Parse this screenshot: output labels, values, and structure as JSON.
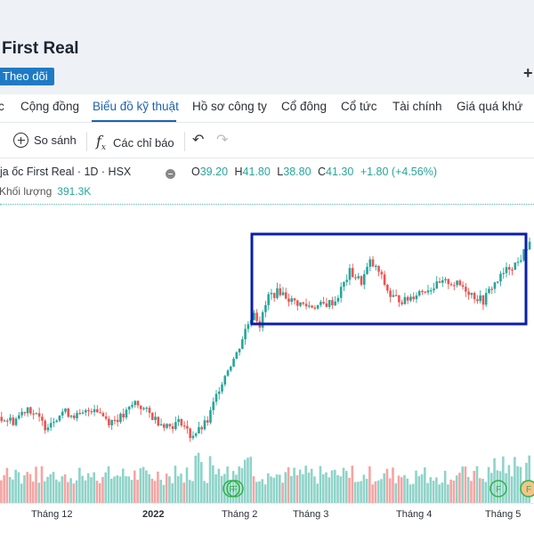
{
  "header": {
    "company_name": "First Real",
    "follow_label": "Theo dõi",
    "add_icon": "plus-icon"
  },
  "tabs": [
    {
      "label": "c",
      "active": false
    },
    {
      "label": "Cộng đồng",
      "active": false
    },
    {
      "label": "Biểu đồ kỹ thuật",
      "active": true
    },
    {
      "label": "Hồ sơ công ty",
      "active": false
    },
    {
      "label": "Cổ đông",
      "active": false
    },
    {
      "label": "Cổ tức",
      "active": false
    },
    {
      "label": "Tài chính",
      "active": false
    },
    {
      "label": "Giá quá khứ",
      "active": false
    }
  ],
  "toolbar": {
    "compare_label": "So sánh",
    "indicators_label": "Các chỉ báo",
    "icons": [
      "compare-icon",
      "fx-icon",
      "undo-icon",
      "redo-icon"
    ]
  },
  "legend": {
    "symbol_text": "ja ốc First Real · 1D · HSX",
    "open_key": "O",
    "open": "39.20",
    "high_key": "H",
    "high": "41.80",
    "low_key": "L",
    "low": "38.80",
    "close_key": "C",
    "close": "41.30",
    "change": "+1.80 (+4.56%)",
    "volume_label": "Khối lượng",
    "volume_value": "391.3K"
  },
  "colors": {
    "up": "#26a69a",
    "down": "#ef5350",
    "volume_up": "#8fd3c9",
    "volume_down": "#f4a5a3",
    "highlight_box": "#0a1fa8",
    "active_tab": "#1f62b0",
    "follow_button": "#1f7ac6"
  },
  "chart_data": {
    "type": "candlestick",
    "timeframe": "1D",
    "exchange": "HSX",
    "x_ticks": [
      "Tháng 12",
      "2022",
      "Tháng 2",
      "Tháng 3",
      "Tháng 4",
      "Tháng 5"
    ],
    "ylim": [
      18,
      45
    ],
    "price_path": [
      [
        0,
        23
      ],
      [
        5,
        22.5
      ],
      [
        10,
        24
      ],
      [
        16,
        22
      ],
      [
        22,
        23.5
      ],
      [
        28,
        23
      ],
      [
        33,
        24
      ],
      [
        38,
        22.5
      ],
      [
        43,
        23
      ],
      [
        47,
        24.5
      ],
      [
        51,
        23.5
      ],
      [
        55,
        22.5
      ],
      [
        59,
        22
      ],
      [
        63,
        22.5
      ],
      [
        66,
        21
      ],
      [
        69,
        21.5
      ],
      [
        72,
        22.5
      ],
      [
        76,
        26
      ],
      [
        79,
        28
      ],
      [
        82,
        29.5
      ],
      [
        85,
        32
      ],
      [
        88,
        34
      ],
      [
        90,
        32.5
      ],
      [
        93,
        35.5
      ],
      [
        97,
        36
      ],
      [
        101,
        35
      ],
      [
        106,
        34.5
      ],
      [
        111,
        34.5
      ],
      [
        116,
        35
      ],
      [
        121,
        38
      ],
      [
        125,
        37
      ],
      [
        128,
        39
      ],
      [
        131,
        38
      ],
      [
        135,
        35.5
      ],
      [
        140,
        35
      ],
      [
        145,
        36
      ],
      [
        150,
        36.5
      ],
      [
        155,
        37
      ],
      [
        160,
        36.5
      ],
      [
        164,
        35.5
      ],
      [
        167,
        35
      ],
      [
        170,
        36.5
      ],
      [
        173,
        37.5
      ],
      [
        176,
        38.5
      ],
      [
        179,
        39
      ],
      [
        181,
        40
      ],
      [
        183,
        41.3
      ]
    ],
    "annotation": "highlight rectangle around Mar–May consolidation range (~35–40)"
  }
}
